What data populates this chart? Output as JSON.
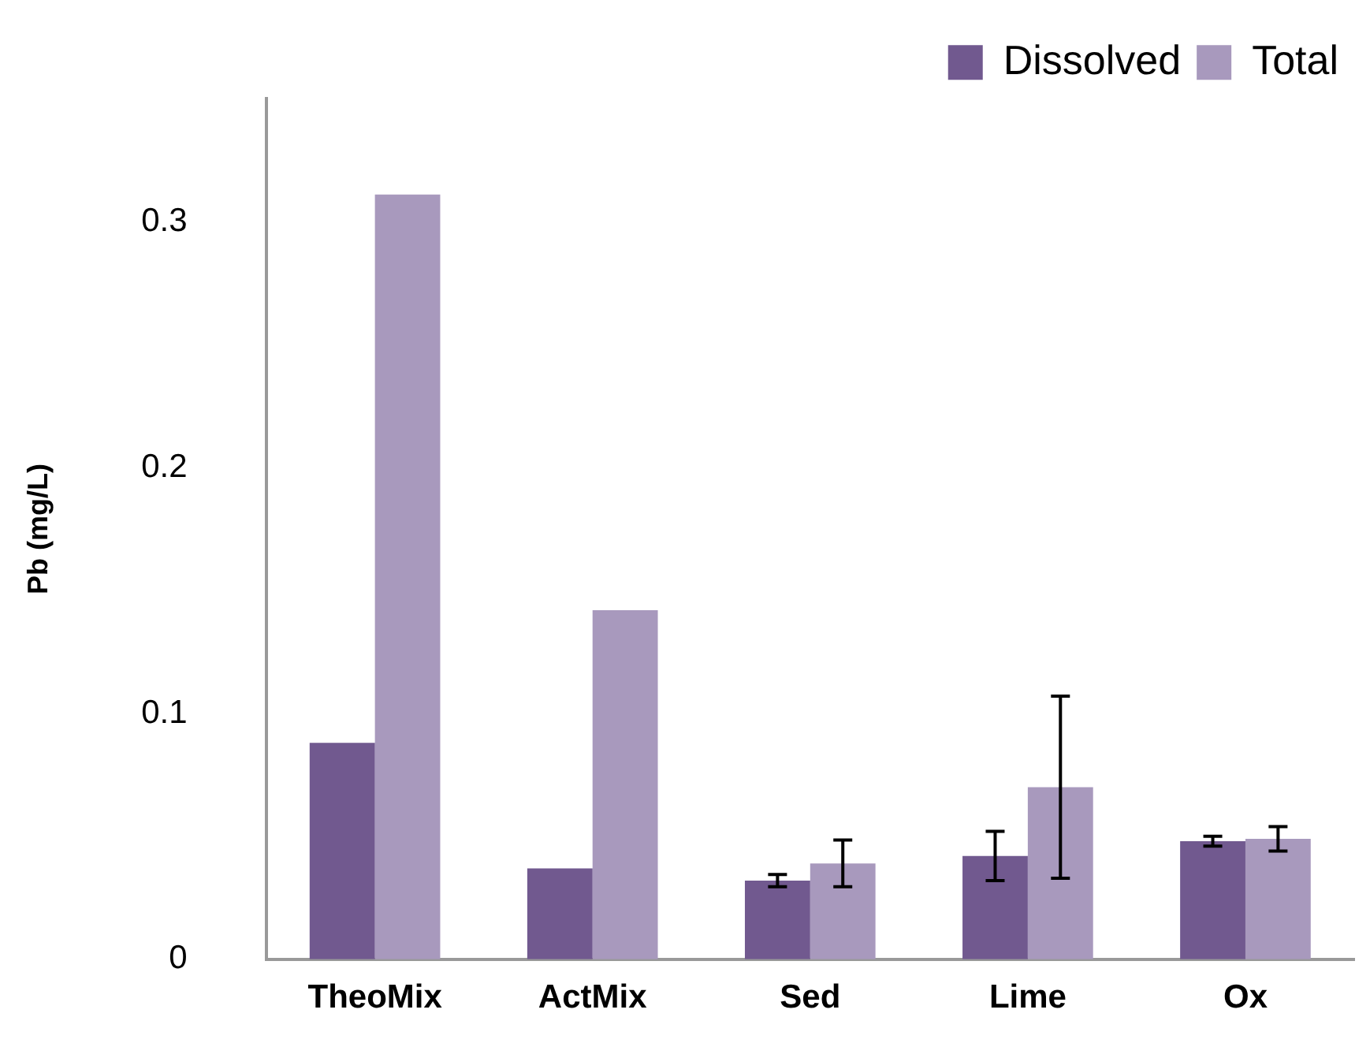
{
  "chart_data": {
    "type": "bar",
    "ylabel": "Pb (mg/L)",
    "categories": [
      "TheoMix",
      "ActMix",
      "Sed",
      "Lime",
      "Ox"
    ],
    "series": [
      {
        "name": "Dissolved",
        "color": "#71598f",
        "values": [
          0.088,
          0.037,
          0.032,
          0.042,
          0.048
        ],
        "errors": [
          null,
          null,
          0.0025,
          0.01,
          0.002
        ]
      },
      {
        "name": "Total",
        "color": "#a899bd",
        "values": [
          0.311,
          0.142,
          0.039,
          0.07,
          0.049
        ],
        "errors": [
          null,
          null,
          0.0095,
          0.037,
          0.005
        ]
      }
    ],
    "ylim": [
      0,
      0.35
    ],
    "yticks": [
      0,
      0.1,
      0.2,
      0.3
    ],
    "grid": false,
    "legend": "top right"
  }
}
